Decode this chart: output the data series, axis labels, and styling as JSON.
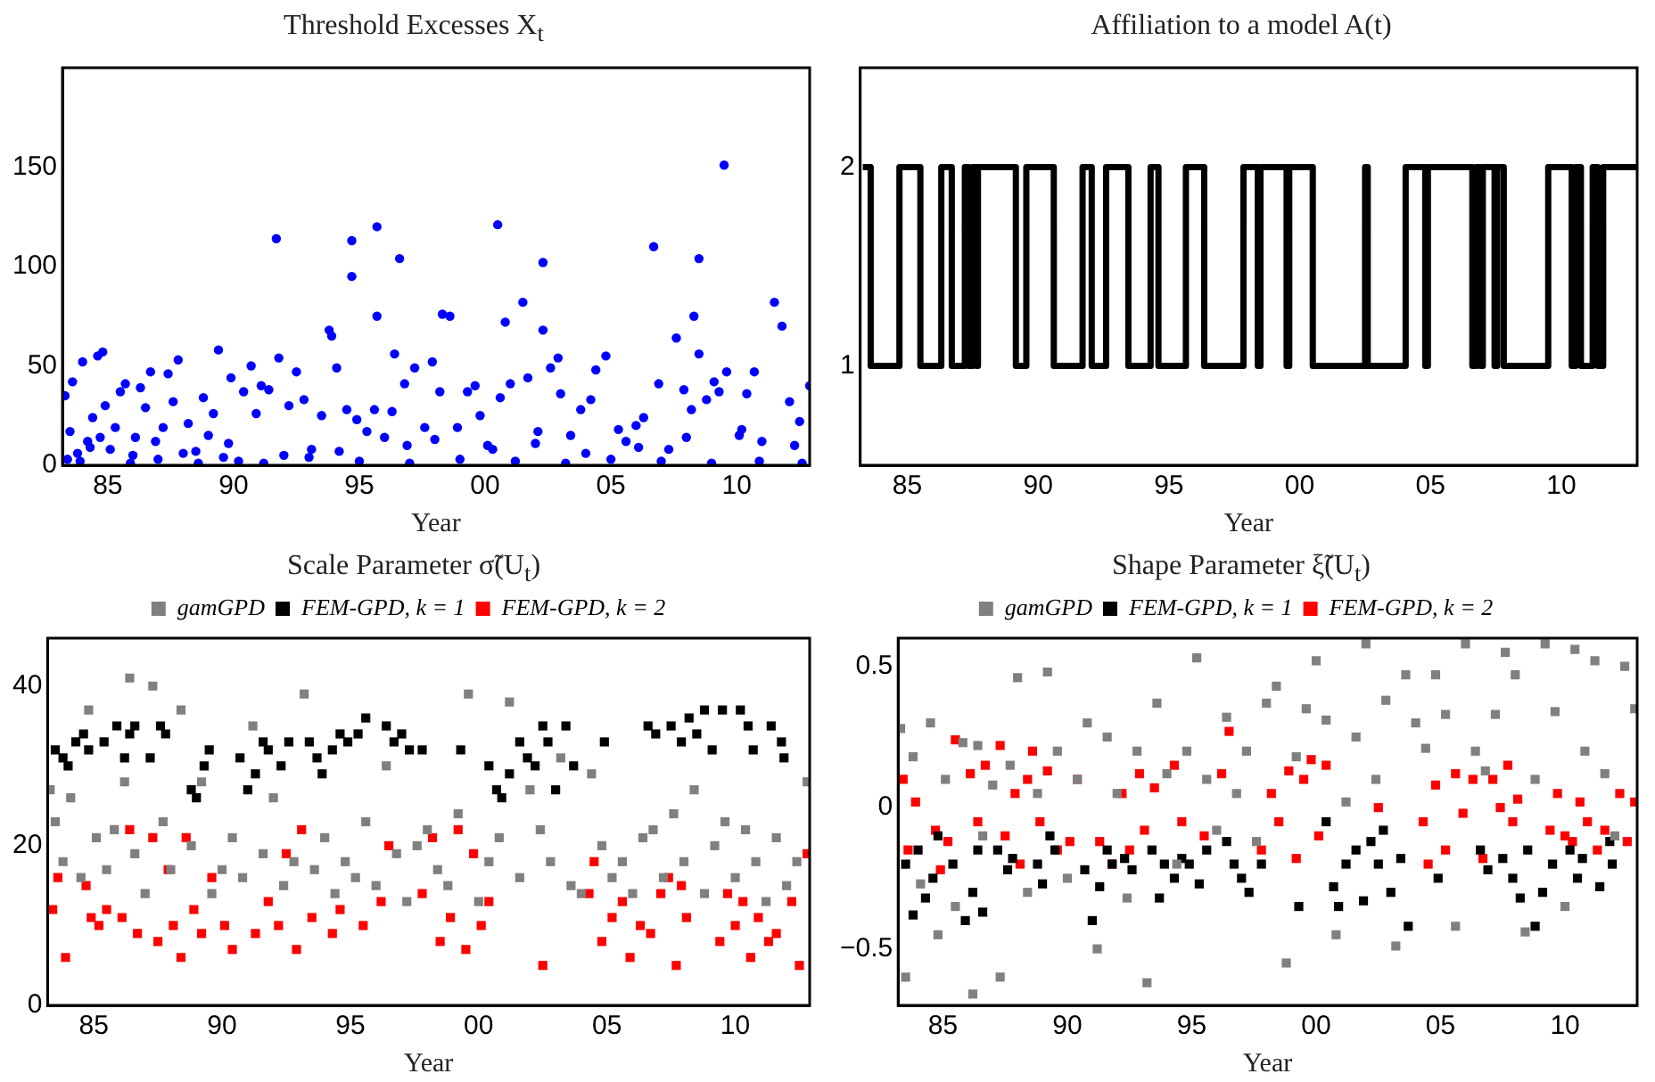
{
  "chart_data": [
    {
      "type": "scatter",
      "title": "Threshold Excesses X$_{t}$",
      "xlabel": "Year",
      "marker": "circle",
      "grid": false,
      "legend": false,
      "xlim": [
        1983.2,
        2012.9
      ],
      "xticks": [
        {
          "value": 1985,
          "label": "85"
        },
        {
          "value": 1990,
          "label": "90"
        },
        {
          "value": 1995,
          "label": "95"
        },
        {
          "value": 2000,
          "label": "00"
        },
        {
          "value": 2005,
          "label": "05"
        },
        {
          "value": 2010,
          "label": "10"
        }
      ],
      "ylim": [
        0,
        200
      ],
      "yticks": [
        0,
        50,
        100,
        150
      ],
      "series": [
        {
          "color": "#0000ff",
          "x": [
            1983.3,
            1983.4,
            1983.5,
            1983.6,
            1983.8,
            1984.0,
            1984.2,
            1984.4,
            1984.6,
            1984.7,
            1984.8,
            1984.9,
            1985.1,
            1985.3,
            1985.5,
            1985.7,
            1986.0,
            1986.3,
            1986.5,
            1986.7,
            1986.9,
            1987.2,
            1987.4,
            1987.6,
            1987.8,
            1988.2,
            1988.5,
            1988.8,
            1989.0,
            1989.2,
            1989.4,
            1989.6,
            1989.9,
            1990.4,
            1990.7,
            1990.9,
            1991.1,
            1991.4,
            1991.7,
            1991.8,
            1992.2,
            1992.5,
            1992.8,
            1993.1,
            1993.5,
            1993.8,
            1993.9,
            1994.1,
            1994.5,
            1994.7,
            1994.7,
            1994.9,
            1995.3,
            1995.6,
            1995.7,
            1995.7,
            1996.0,
            1996.3,
            1996.4,
            1996.6,
            1996.8,
            1997.2,
            1997.6,
            1997.9,
            1998.2,
            1998.3,
            1998.6,
            1998.9,
            1999.3,
            1999.6,
            1999.8,
            2000.1,
            2000.5,
            2000.6,
            2000.8,
            2001.0,
            2001.5,
            2001.7,
            2002.1,
            2002.3,
            2002.3,
            2002.6,
            2002.9,
            2003.0,
            2003.4,
            2003.8,
            2004.2,
            2004.4,
            2004.8,
            2005.3,
            2005.6,
            2006.0,
            2006.3,
            2006.7,
            2006.9,
            2007.3,
            2007.6,
            2007.9,
            2008.2,
            2008.3,
            2008.5,
            2008.5,
            2008.8,
            2009.1,
            2009.3,
            2009.5,
            2009.6,
            2010.1,
            2010.4,
            2010.7,
            2011.0,
            2011.5,
            2011.8,
            2012.1,
            2012.5,
            2012.9,
            1983.9,
            1985.9,
            1987.0,
            1988.6,
            1990.2,
            1991.2,
            1993.0,
            1995.0,
            1997.0,
            1999.0,
            2001.2,
            2003.2,
            2005.0,
            2007.0,
            2009.0,
            2010.9,
            2012.6,
            1984.3,
            1986.1,
            1988.0,
            1989.8,
            1992.0,
            1994.2,
            1996.9,
            1998.0,
            2000.3,
            2002.0,
            2004.0,
            2006.1,
            2008.0,
            2010.2,
            2012.3
          ],
          "values": [
            35,
            3,
            17,
            42,
            6,
            52,
            12,
            24,
            55,
            14,
            57,
            30,
            8,
            19,
            37,
            41,
            5,
            39,
            29,
            47,
            12,
            19,
            46,
            32,
            53,
            21,
            7,
            34,
            15,
            26,
            58,
            4,
            44,
            37,
            50,
            26,
            40,
            38,
            114,
            54,
            30,
            47,
            33,
            8,
            25,
            68,
            65,
            49,
            28,
            113,
            95,
            23,
            17,
            28,
            120,
            75,
            14,
            27,
            56,
            104,
            41,
            49,
            19,
            52,
            37,
            76,
            75,
            19,
            37,
            40,
            25,
            10,
            121,
            34,
            72,
            41,
            82,
            44,
            17,
            102,
            68,
            49,
            54,
            36,
            15,
            28,
            33,
            48,
            55,
            18,
            12,
            20,
            24,
            110,
            41,
            8,
            64,
            38,
            28,
            75,
            104,
            56,
            33,
            42,
            37,
            151,
            47,
            15,
            36,
            47,
            12,
            82,
            70,
            32,
            22,
            40,
            2,
            1,
            3,
            1,
            2,
            1,
            4,
            2,
            1,
            3,
            2,
            1,
            3,
            2,
            1,
            2,
            1,
            9,
            14,
            6,
            11,
            5,
            7,
            10,
            13,
            8,
            11,
            6,
            9,
            14,
            18,
            10
          ]
        }
      ]
    },
    {
      "type": "step",
      "title": "Affiliation to a model A(t)",
      "xlabel": "Year",
      "marker": "none",
      "grid": false,
      "legend": false,
      "xlim": [
        1983.2,
        2012.9
      ],
      "xticks": [
        {
          "value": 1985,
          "label": "85"
        },
        {
          "value": 1990,
          "label": "90"
        },
        {
          "value": 1995,
          "label": "95"
        },
        {
          "value": 2000,
          "label": "00"
        },
        {
          "value": 2005,
          "label": "05"
        },
        {
          "value": 2010,
          "label": "10"
        }
      ],
      "ylim": [
        0.5,
        2.5
      ],
      "yticks": [
        1,
        2
      ],
      "series": [
        {
          "color": "#000000",
          "x": [
            1983.3,
            1983.6,
            1984.7,
            1985.5,
            1986.3,
            1986.7,
            1987.2,
            1987.35,
            1987.5,
            1987.65,
            1987.7,
            1989.15,
            1989.55,
            1990.6,
            1991.7,
            1992.05,
            1992.6,
            1993.45,
            1994.3,
            1994.6,
            1995.65,
            1996.35,
            1997.85,
            1998.4,
            1998.5,
            1999.5,
            1999.6,
            2000.5,
            2002.5,
            2002.6,
            2004.05,
            2004.8,
            2004.9,
            2006.6,
            2006.75,
            2006.9,
            2007.0,
            2007.45,
            2007.55,
            2007.8,
            2009.5,
            2010.4,
            2010.55,
            2010.75,
            2011.2,
            2011.4,
            2011.6,
            2012.9
          ],
          "values": [
            2,
            1,
            2,
            1,
            2,
            1,
            2,
            1,
            2,
            1,
            2,
            1,
            2,
            1,
            2,
            1,
            2,
            1,
            2,
            1,
            2,
            1,
            2,
            1,
            2,
            1,
            2,
            1,
            2,
            1,
            2,
            1,
            2,
            1,
            2,
            1,
            2,
            1,
            2,
            1,
            2,
            1,
            2,
            1,
            2,
            1,
            2,
            2
          ]
        }
      ]
    },
    {
      "type": "scatter",
      "title": "Scale Parameter σ̃(U$_{t}$)",
      "xlabel": "Year",
      "marker": "square",
      "grid": false,
      "legend": "top",
      "xlim": [
        1983.2,
        2012.9
      ],
      "xticks": [
        {
          "value": 1985,
          "label": "85"
        },
        {
          "value": 1990,
          "label": "90"
        },
        {
          "value": 1995,
          "label": "95"
        },
        {
          "value": 2000,
          "label": "00"
        },
        {
          "value": 2005,
          "label": "05"
        },
        {
          "value": 2010,
          "label": "10"
        }
      ],
      "ylim": [
        0,
        46
      ],
      "yticks": [
        0,
        20,
        40
      ],
      "series": [
        {
          "name": "gamGPD",
          "color": "#808080",
          "x": [
            1983.3,
            1983.5,
            1983.8,
            1984.1,
            1984.5,
            1984.8,
            1985.1,
            1985.5,
            1985.8,
            1986.2,
            1986.4,
            1986.6,
            1987.0,
            1987.3,
            1987.7,
            1988.0,
            1988.4,
            1988.8,
            1989.2,
            1989.6,
            1990.0,
            1990.4,
            1990.8,
            1991.2,
            1991.6,
            1992.0,
            1992.4,
            1992.8,
            1993.2,
            1993.6,
            1994.0,
            1994.4,
            1994.8,
            1995.2,
            1995.6,
            1996.0,
            1996.4,
            1996.8,
            1997.2,
            1997.6,
            1998.0,
            1998.4,
            1998.8,
            1999.2,
            1999.6,
            2000.0,
            2000.4,
            2000.8,
            2001.2,
            2001.6,
            2002.0,
            2002.4,
            2002.8,
            2003.2,
            2003.6,
            2004.0,
            2004.4,
            2004.8,
            2005.2,
            2005.6,
            2006.0,
            2006.4,
            2006.8,
            2007.2,
            2007.6,
            2008.0,
            2008.4,
            2008.8,
            2009.2,
            2009.6,
            2010.0,
            2010.4,
            2010.8,
            2011.2,
            2011.6,
            2012.0,
            2012.4,
            2012.8
          ],
          "values": [
            27,
            23,
            18,
            26,
            16,
            37,
            21,
            17,
            22,
            28,
            41,
            19,
            14,
            40,
            23,
            17,
            37,
            20,
            28,
            14,
            17,
            21,
            16,
            35,
            19,
            26,
            15,
            18,
            39,
            17,
            21,
            14,
            18,
            16,
            23,
            15,
            30,
            19,
            13,
            20,
            22,
            17,
            15,
            24,
            39,
            13,
            18,
            21,
            38,
            16,
            27,
            22,
            18,
            31,
            15,
            14,
            29,
            20,
            16,
            18,
            14,
            21,
            22,
            16,
            24,
            18,
            27,
            14,
            20,
            23,
            16,
            22,
            18,
            13,
            21,
            15,
            18,
            28
          ]
        },
        {
          "name": "FEM-GPD, k = 1",
          "color": "#000000",
          "x": [
            1983.5,
            1983.8,
            1984.0,
            1984.3,
            1984.6,
            1984.8,
            1985.4,
            1985.9,
            1986.2,
            1986.4,
            1986.6,
            1987.2,
            1987.6,
            1987.8,
            1988.8,
            1989.0,
            1989.3,
            1989.5,
            1990.7,
            1991.0,
            1991.3,
            1991.6,
            1991.8,
            1992.3,
            1992.6,
            1993.4,
            1993.7,
            1993.9,
            1994.3,
            1994.6,
            1994.9,
            1995.3,
            1995.6,
            1996.4,
            1996.7,
            1997.0,
            1997.3,
            1997.8,
            1999.3,
            2000.4,
            2000.7,
            2000.9,
            2001.2,
            2001.6,
            2001.9,
            2002.2,
            2002.5,
            2002.7,
            2003.0,
            2003.4,
            2003.7,
            2004.9,
            2006.6,
            2006.9,
            2007.5,
            2007.9,
            2008.2,
            2008.5,
            2008.8,
            2009.1,
            2009.5,
            2010.2,
            2010.5,
            2010.7,
            2011.4,
            2011.8,
            2011.9
          ],
          "values": [
            32,
            31,
            30,
            33,
            34,
            32,
            33,
            35,
            31,
            34,
            35,
            31,
            35,
            34,
            27,
            26,
            30,
            32,
            31,
            27,
            29,
            33,
            32,
            30,
            33,
            33,
            31,
            29,
            32,
            34,
            33,
            34,
            36,
            35,
            33,
            34,
            32,
            32,
            32,
            30,
            27,
            26,
            29,
            33,
            31,
            30,
            35,
            33,
            27,
            35,
            30,
            33,
            35,
            34,
            35,
            33,
            36,
            34,
            37,
            32,
            37,
            37,
            35,
            32,
            35,
            33,
            31
          ]
        },
        {
          "name": "FEM-GPD, k = 2",
          "color": "#ff0000",
          "x": [
            1983.4,
            1983.6,
            1983.9,
            1984.7,
            1984.9,
            1985.2,
            1985.5,
            1986.1,
            1986.4,
            1986.7,
            1987.3,
            1987.5,
            1987.9,
            1988.1,
            1988.4,
            1988.6,
            1988.9,
            1989.2,
            1989.6,
            1990.1,
            1990.4,
            1991.3,
            1991.8,
            1992.2,
            1992.5,
            1992.9,
            1993.1,
            1993.5,
            1994.3,
            1994.6,
            1995.5,
            1996.2,
            1996.5,
            1997.8,
            1998.2,
            1998.5,
            1998.9,
            1999.2,
            1999.5,
            1999.8,
            2000.1,
            2000.4,
            2002.5,
            2004.3,
            2004.5,
            2004.8,
            2005.2,
            2005.6,
            2005.9,
            2006.3,
            2006.7,
            2007.1,
            2007.4,
            2007.7,
            2007.9,
            2008.1,
            2009.4,
            2009.7,
            2010.0,
            2010.3,
            2010.6,
            2010.9,
            2011.3,
            2011.6,
            2012.2,
            2012.5,
            2012.8
          ],
          "values": [
            12,
            16,
            6,
            15,
            11,
            10,
            12,
            11,
            22,
            9,
            21,
            8,
            17,
            10,
            6,
            21,
            12,
            9,
            16,
            10,
            7,
            9,
            13,
            10,
            19,
            7,
            22,
            11,
            9,
            12,
            10,
            13,
            20,
            14,
            21,
            8,
            11,
            22,
            7,
            19,
            10,
            13,
            5,
            14,
            18,
            8,
            11,
            13,
            6,
            10,
            9,
            14,
            16,
            5,
            15,
            11,
            8,
            14,
            10,
            13,
            6,
            11,
            8,
            9,
            13,
            5,
            19
          ]
        }
      ]
    },
    {
      "type": "scatter",
      "title": "Shape Parameter ξ̃(U$_{t}$)",
      "xlabel": "Year",
      "marker": "square",
      "grid": false,
      "legend": "top",
      "xlim": [
        1983.2,
        2012.9
      ],
      "xticks": [
        {
          "value": 1985,
          "label": "85"
        },
        {
          "value": 1990,
          "label": "90"
        },
        {
          "value": 1995,
          "label": "95"
        },
        {
          "value": 2000,
          "label": "00"
        },
        {
          "value": 2005,
          "label": "05"
        },
        {
          "value": 2010,
          "label": "10"
        }
      ],
      "ylim": [
        -0.7,
        0.6
      ],
      "yticks": [
        {
          "value": -0.5,
          "label": "−0.5"
        },
        0,
        0.5
      ],
      "series": [
        {
          "name": "gamGPD",
          "color": "#808080",
          "x": [
            1983.3,
            1983.5,
            1983.8,
            1984.1,
            1984.5,
            1984.8,
            1985.1,
            1985.5,
            1985.8,
            1986.2,
            1986.4,
            1986.6,
            1987.0,
            1987.3,
            1987.7,
            1988.0,
            1988.4,
            1988.8,
            1989.2,
            1989.6,
            1990.0,
            1990.4,
            1990.8,
            1991.2,
            1991.6,
            1992.0,
            1992.4,
            1992.8,
            1993.2,
            1993.6,
            1994.0,
            1994.4,
            1994.8,
            1995.2,
            1995.6,
            1996.0,
            1996.4,
            1996.8,
            1997.2,
            1997.6,
            1998.0,
            1998.4,
            1998.8,
            1999.2,
            1999.6,
            2000.0,
            2000.4,
            2000.8,
            2001.2,
            2001.6,
            2002.0,
            2002.4,
            2002.8,
            2003.2,
            2003.6,
            2004.0,
            2004.4,
            2004.8,
            2005.2,
            2005.6,
            2006.0,
            2006.4,
            2006.8,
            2007.2,
            2007.6,
            2008.0,
            2008.4,
            2008.8,
            2009.2,
            2009.6,
            2010.0,
            2010.4,
            2010.8,
            2011.2,
            2011.6,
            2012.0,
            2012.4,
            2012.8
          ],
          "values": [
            0.28,
            -0.6,
            0.18,
            -0.27,
            0.3,
            -0.45,
            0.1,
            -0.35,
            0.23,
            -0.66,
            0.22,
            -0.1,
            0.08,
            -0.6,
            0.15,
            0.46,
            -0.3,
            0.05,
            0.48,
            0.2,
            -0.25,
            0.1,
            0.3,
            -0.5,
            0.25,
            0.05,
            -0.32,
            0.2,
            -0.62,
            0.37,
            0.12,
            -0.2,
            0.2,
            0.53,
            0.1,
            -0.08,
            0.32,
            0.05,
            0.2,
            -0.12,
            0.37,
            0.43,
            -0.55,
            0.18,
            0.35,
            0.52,
            0.31,
            -0.45,
            0.02,
            0.25,
            0.58,
            0.1,
            0.38,
            -0.49,
            0.47,
            0.3,
            0.21,
            0.47,
            0.33,
            -0.42,
            0.58,
            0.2,
            0.13,
            0.33,
            0.55,
            0.47,
            -0.44,
            0.1,
            0.58,
            0.34,
            -0.35,
            0.56,
            0.2,
            0.52,
            0.12,
            -0.1,
            0.5,
            0.35
          ]
        },
        {
          "name": "FEM-GPD, k = 1",
          "color": "#000000",
          "x": [
            1983.5,
            1983.8,
            1984.0,
            1984.3,
            1984.6,
            1984.8,
            1985.4,
            1985.9,
            1986.2,
            1986.4,
            1986.6,
            1987.2,
            1987.6,
            1987.8,
            1988.8,
            1989.0,
            1989.3,
            1989.5,
            1990.7,
            1991.0,
            1991.3,
            1991.6,
            1991.8,
            1992.3,
            1992.6,
            1993.4,
            1993.7,
            1993.9,
            1994.3,
            1994.6,
            1994.9,
            1995.3,
            1995.6,
            1996.4,
            1996.7,
            1997.0,
            1997.3,
            1997.8,
            1999.3,
            2000.4,
            2000.7,
            2000.9,
            2001.2,
            2001.6,
            2001.9,
            2002.2,
            2002.5,
            2002.7,
            2003.0,
            2003.4,
            2003.7,
            2004.9,
            2006.6,
            2006.9,
            2007.5,
            2007.9,
            2008.2,
            2008.5,
            2008.8,
            2009.1,
            2009.5,
            2010.2,
            2010.5,
            2010.7,
            2011.4,
            2011.8,
            2011.9
          ],
          "values": [
            -0.2,
            -0.38,
            -0.15,
            -0.32,
            -0.25,
            -0.1,
            -0.2,
            -0.4,
            -0.3,
            -0.15,
            -0.37,
            -0.15,
            -0.22,
            -0.18,
            -0.2,
            -0.27,
            -0.1,
            -0.15,
            -0.22,
            -0.4,
            -0.28,
            -0.15,
            -0.2,
            -0.18,
            -0.22,
            -0.15,
            -0.32,
            -0.2,
            -0.25,
            -0.18,
            -0.2,
            -0.27,
            -0.15,
            -0.12,
            -0.2,
            -0.25,
            -0.3,
            -0.2,
            -0.35,
            -0.05,
            -0.28,
            -0.35,
            -0.2,
            -0.15,
            -0.33,
            -0.12,
            -0.2,
            -0.08,
            -0.3,
            -0.18,
            -0.42,
            -0.25,
            -0.15,
            -0.22,
            -0.18,
            -0.25,
            -0.32,
            -0.15,
            -0.42,
            -0.3,
            -0.2,
            -0.15,
            -0.25,
            -0.18,
            -0.28,
            -0.12,
            -0.2
          ]
        },
        {
          "name": "FEM-GPD, k = 2",
          "color": "#ff0000",
          "x": [
            1983.4,
            1983.6,
            1983.9,
            1984.7,
            1984.9,
            1985.2,
            1985.5,
            1986.1,
            1986.4,
            1986.7,
            1987.3,
            1987.5,
            1987.9,
            1988.1,
            1988.4,
            1988.6,
            1988.9,
            1989.2,
            1989.6,
            1990.1,
            1990.4,
            1991.3,
            1991.8,
            1992.2,
            1992.5,
            1992.9,
            1993.1,
            1993.5,
            1994.3,
            1994.6,
            1995.5,
            1996.2,
            1996.5,
            1997.8,
            1998.2,
            1998.5,
            1998.9,
            1999.2,
            1999.5,
            1999.8,
            2000.1,
            2000.4,
            2002.5,
            2004.3,
            2004.5,
            2004.8,
            2005.2,
            2005.6,
            2005.9,
            2006.3,
            2006.7,
            2007.1,
            2007.4,
            2007.7,
            2007.9,
            2008.1,
            2009.4,
            2009.7,
            2010.0,
            2010.3,
            2010.6,
            2010.9,
            2011.3,
            2011.6,
            2012.2,
            2012.5,
            2012.8
          ],
          "values": [
            0.1,
            -0.15,
            0.02,
            -0.08,
            -0.22,
            -0.12,
            0.24,
            0.12,
            -0.05,
            0.15,
            0.22,
            -0.1,
            0.05,
            -0.2,
            0.1,
            0.2,
            -0.05,
            0.13,
            -0.15,
            -0.12,
            0.1,
            -0.12,
            -0.2,
            0.05,
            -0.15,
            0.12,
            -0.08,
            0.07,
            0.15,
            -0.05,
            -0.1,
            0.12,
            0.27,
            -0.15,
            0.05,
            -0.05,
            0.13,
            -0.18,
            0.1,
            0.17,
            -0.1,
            0.15,
            0.0,
            -0.05,
            -0.2,
            0.08,
            -0.15,
            0.12,
            -0.02,
            0.1,
            -0.18,
            0.1,
            0.0,
            0.15,
            -0.05,
            0.03,
            -0.08,
            0.05,
            -0.1,
            -0.12,
            0.02,
            -0.05,
            -0.15,
            -0.08,
            0.05,
            -0.12,
            0.02
          ]
        }
      ]
    }
  ]
}
